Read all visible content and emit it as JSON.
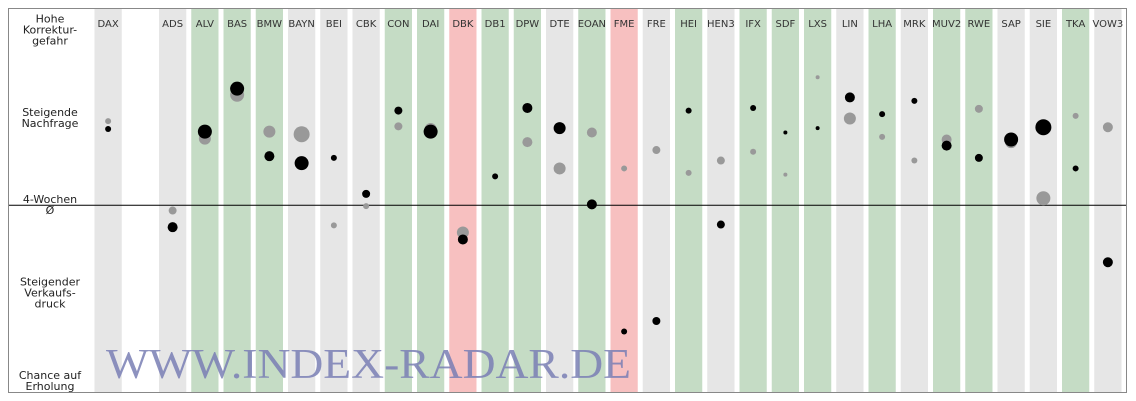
{
  "chart_data": {
    "type": "dot",
    "categories": [
      "DAX",
      null,
      "ADS",
      "ALV",
      "BAS",
      "BMW",
      "BAYN",
      "BEI",
      "CBK",
      "CON",
      "DAI",
      "DBK",
      "DB1",
      "DPW",
      "DTE",
      "EOAN",
      "FME",
      "FRE",
      "HEI",
      "HEN3",
      "IFX",
      "SDF",
      "LXS",
      "LIN",
      "LHA",
      "MRK",
      "MUV2",
      "RWE",
      "SAP",
      "SIE",
      "TKA",
      "VOW3"
    ],
    "column_colors": [
      "#e6e6e6",
      null,
      "#e6e6e6",
      "#c5dcc5",
      "#c5dcc5",
      "#c5dcc5",
      "#e6e6e6",
      "#e6e6e6",
      "#e6e6e6",
      "#c5dcc5",
      "#c5dcc5",
      "#f7c0c0",
      "#c5dcc5",
      "#c5dcc5",
      "#e6e6e6",
      "#c5dcc5",
      "#f7c0c0",
      "#e6e6e6",
      "#c5dcc5",
      "#e6e6e6",
      "#c5dcc5",
      "#c5dcc5",
      "#c5dcc5",
      "#e6e6e6",
      "#c5dcc5",
      "#e6e6e6",
      "#c5dcc5",
      "#c5dcc5",
      "#e6e6e6",
      "#e6e6e6",
      "#c5dcc5",
      "#e6e6e6"
    ],
    "series": [
      {
        "color": "#999999",
        "values": [
          0.96,
          null,
          -0.06,
          0.76,
          1.26,
          0.84,
          0.81,
          -0.23,
          -0.01,
          0.9,
          0.87,
          -0.31,
          null,
          0.72,
          0.42,
          0.83,
          0.42,
          0.63,
          0.37,
          0.51,
          0.61,
          0.35,
          1.46,
          0.99,
          0.78,
          0.51,
          0.75,
          1.1,
          0.72,
          0.08,
          1.02,
          0.89
        ],
        "sizes": [
          3,
          null,
          4,
          6,
          7,
          6,
          8,
          3,
          3,
          4,
          6,
          6,
          null,
          5,
          6,
          5,
          3,
          4,
          3,
          4,
          3,
          2,
          2,
          6,
          3,
          3,
          5,
          4,
          6,
          7,
          3,
          5
        ]
      },
      {
        "color": "#000000",
        "values": [
          0.87,
          null,
          -0.25,
          0.84,
          1.33,
          0.56,
          0.48,
          0.54,
          0.13,
          1.08,
          0.84,
          -0.39,
          0.33,
          1.11,
          0.88,
          0.01,
          -1.44,
          -1.32,
          1.08,
          -0.22,
          1.11,
          0.83,
          0.88,
          1.23,
          1.04,
          1.19,
          0.68,
          0.54,
          0.75,
          0.89,
          0.42,
          -0.65
        ],
        "sizes": [
          3,
          null,
          5,
          7,
          7,
          5,
          7,
          3,
          4,
          4,
          7,
          5,
          3,
          5,
          6,
          5,
          3,
          4,
          3,
          4,
          3,
          2,
          2,
          5,
          3,
          3,
          5,
          4,
          7,
          8,
          3,
          5
        ]
      }
    ],
    "ylim": [
      -2.13,
      2.25
    ],
    "yticks": [
      {
        "value": 2,
        "label": "Hohe\nKorrektur-\ngefahr"
      },
      {
        "value": 1,
        "label": "Steigende\nNachfrage"
      },
      {
        "value": 0,
        "label": "4-Wochen\nØ"
      },
      {
        "value": -1,
        "label": "Steigender\nVerkaufs-\ndruck"
      },
      {
        "value": -2,
        "label": "Chance auf\nErholung"
      }
    ],
    "reference_line": 0,
    "watermark": "WWW.INDEX-RADAR.DE"
  }
}
